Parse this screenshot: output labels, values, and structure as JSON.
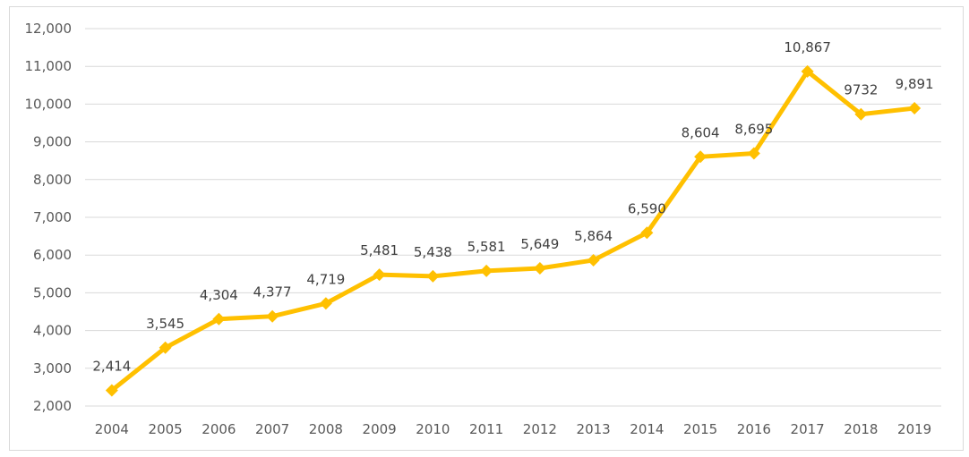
{
  "chart_data": {
    "type": "line",
    "title": "",
    "xlabel": "",
    "ylabel": "",
    "categories": [
      "2004",
      "2005",
      "2006",
      "2007",
      "2008",
      "2009",
      "2010",
      "2011",
      "2012",
      "2013",
      "2014",
      "2015",
      "2016",
      "2017",
      "2018",
      "2019"
    ],
    "series": [
      {
        "values": [
          2414,
          3545,
          4304,
          4377,
          4719,
          5481,
          5438,
          5581,
          5649,
          5864,
          6590,
          8604,
          8695,
          10867,
          9732,
          9891
        ],
        "labels": [
          "2,414",
          "3,545",
          "4,304",
          "4,377",
          "4,719",
          "5,481",
          "5,438",
          "5,581",
          "5,649",
          "5,864",
          "6,590",
          "8,604",
          "8,695",
          "10,867",
          "9732",
          "9,891"
        ],
        "color": "#FFC000",
        "marker": "diamond"
      }
    ],
    "ylim": [
      2000,
      12000
    ],
    "yticks": [
      2000,
      3000,
      4000,
      5000,
      6000,
      7000,
      8000,
      9000,
      10000,
      11000,
      12000
    ],
    "ytick_labels": [
      "2,000",
      "3,000",
      "4,000",
      "5,000",
      "6,000",
      "7,000",
      "8,000",
      "9,000",
      "10,000",
      "11,000",
      "12,000"
    ],
    "grid": true,
    "gridline_color": "#d9d9d9",
    "legend": "none"
  }
}
